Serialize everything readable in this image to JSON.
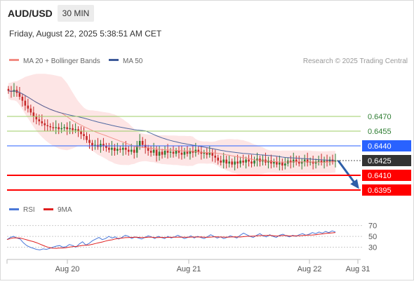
{
  "header": {
    "symbol": "AUD/USD",
    "timeframe": "30 MIN",
    "datetime": "Friday, August 22, 2025 5:38:51 AM CET"
  },
  "legend": {
    "ma20_label": "MA 20 + Bollinger Bands",
    "ma50_label": "MA 50",
    "credit": "Research © 2025 Trading Central",
    "rsi_label": "RSI",
    "rsi_ma_label": "9MA"
  },
  "colors": {
    "ma20": "#f28b82",
    "ma50": "#3d5a99",
    "bollinger_fill": "#fde0e0",
    "candle_up": "#2e7d32",
    "candle_down": "#c62828",
    "resistance_green": "#9ccc65",
    "pivot_blue": "#2962ff",
    "support_red": "#ff0000",
    "last_price_box": "#333333",
    "forecast_arrow": "#2f5fa8",
    "rsi_line": "#4a78d8",
    "rsi_ma_line": "#e02020"
  },
  "chart_data": [
    {
      "type": "candlestick",
      "title": "AUD/USD",
      "timeframe": "30 MIN",
      "x_tick_labels": [
        "Aug 20",
        "Aug 21",
        "Aug 22",
        "Aug 31"
      ],
      "y_range": [
        0.6385,
        0.651
      ],
      "series": [
        {
          "name": "MA 20 + Bollinger Bands",
          "kind": "line+band"
        },
        {
          "name": "MA 50",
          "kind": "line"
        }
      ],
      "closes": [
        0.6496,
        0.6495,
        0.6497,
        0.6494,
        0.649,
        0.6486,
        0.6481,
        0.6478,
        0.6474,
        0.647,
        0.6467,
        0.6465,
        0.6463,
        0.6461,
        0.646,
        0.6459,
        0.6458,
        0.6459,
        0.6457,
        0.6458,
        0.6459,
        0.6457,
        0.6458,
        0.6456,
        0.6457,
        0.6455,
        0.6452,
        0.645,
        0.6446,
        0.6443,
        0.644,
        0.6441,
        0.6439,
        0.6442,
        0.644,
        0.6438,
        0.6436,
        0.6438,
        0.6435,
        0.6437,
        0.6436,
        0.6438,
        0.6436,
        0.6434,
        0.6436,
        0.6433,
        0.644,
        0.6445,
        0.6441,
        0.6438,
        0.6435,
        0.6433,
        0.6436,
        0.643,
        0.6434,
        0.6431,
        0.6435,
        0.6433,
        0.6434,
        0.6432,
        0.6435,
        0.6433,
        0.6431,
        0.6434,
        0.6432,
        0.6435,
        0.6433,
        0.6436,
        0.6434,
        0.6432,
        0.6433,
        0.6431,
        0.6433,
        0.643,
        0.6428,
        0.6425,
        0.6423,
        0.6426,
        0.6422,
        0.6424,
        0.6421,
        0.6424,
        0.6422,
        0.6425,
        0.6423,
        0.6426,
        0.6424,
        0.6422,
        0.6425,
        0.6427,
        0.6424,
        0.6426,
        0.6423,
        0.6425,
        0.6422,
        0.6424,
        0.6421,
        0.6423,
        0.642,
        0.6422,
        0.6425,
        0.6423,
        0.6426,
        0.6424,
        0.6422,
        0.6424,
        0.6426,
        0.6423,
        0.6424,
        0.6422,
        0.6424,
        0.6425,
        0.6423,
        0.6425,
        0.6424,
        0.6426,
        0.6424,
        0.6425
      ],
      "levels": [
        {
          "value": 0.647,
          "label": "0.6470",
          "kind": "resistance"
        },
        {
          "value": 0.6455,
          "label": "0.6455",
          "kind": "resistance"
        },
        {
          "value": 0.644,
          "label": "0.6440",
          "kind": "pivot"
        },
        {
          "value": 0.6425,
          "label": "0.6425",
          "kind": "last"
        },
        {
          "value": 0.641,
          "label": "0.6410",
          "kind": "support"
        },
        {
          "value": 0.6395,
          "label": "0.6395",
          "kind": "support"
        }
      ],
      "forecast": {
        "from": 0.6425,
        "to": 0.6395,
        "direction": "down"
      }
    },
    {
      "type": "line",
      "title": "RSI",
      "series": [
        {
          "name": "RSI"
        },
        {
          "name": "9MA"
        }
      ],
      "y_ticks": [
        70,
        50,
        30
      ],
      "y_range": [
        10,
        85
      ],
      "rsi_values": [
        44,
        48,
        50,
        47,
        45,
        38,
        33,
        30,
        28,
        26,
        25,
        27,
        26,
        28,
        30,
        32,
        33,
        30,
        31,
        35,
        33,
        30,
        36,
        40,
        34,
        37,
        42,
        45,
        48,
        44,
        46,
        50,
        47,
        49,
        45,
        48,
        52,
        50,
        46,
        49,
        47,
        45,
        48,
        51,
        49,
        46,
        50,
        48,
        46,
        50,
        47,
        49,
        52,
        49,
        46,
        48,
        51,
        47,
        50,
        48,
        46,
        49,
        53,
        50,
        47,
        49,
        46,
        48,
        51,
        49,
        47,
        52,
        56,
        53,
        50,
        48,
        52,
        55,
        51,
        49,
        53,
        50,
        48,
        52,
        54,
        51,
        49,
        52,
        50,
        53,
        55,
        52,
        54,
        57,
        55,
        58,
        56,
        59,
        57,
        60,
        58
      ]
    }
  ]
}
